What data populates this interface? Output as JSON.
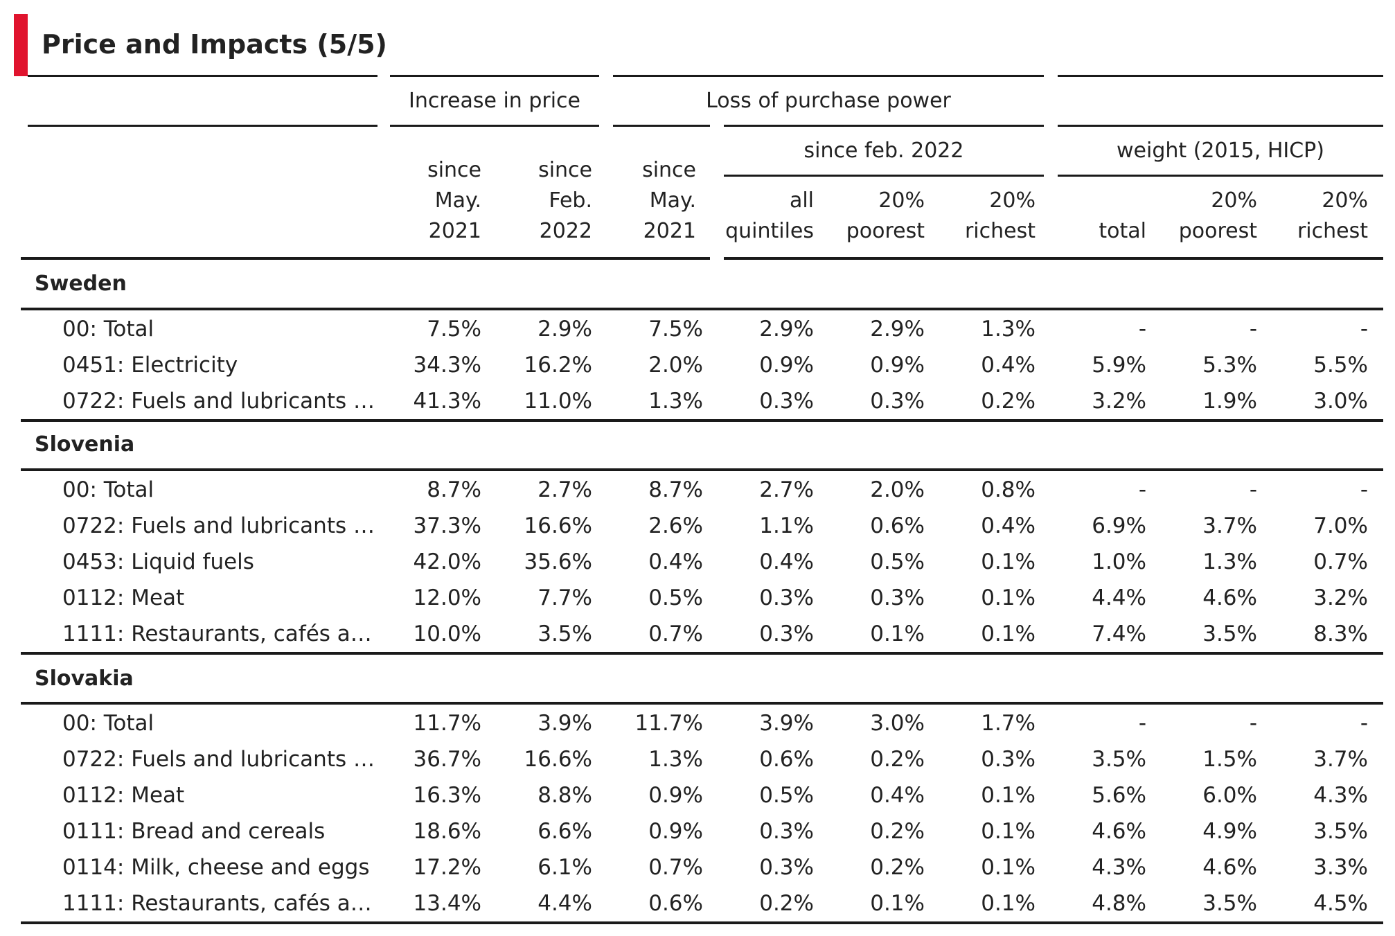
{
  "page": {
    "title": "Price and Impacts (5/5)"
  },
  "headers": {
    "increase_in_price": "Increase in price",
    "loss_of_purchase_power": "Loss of purchase power",
    "since_feb_2022": "since feb. 2022",
    "weight": "weight (2015, HICP)",
    "col1": [
      "since",
      "May.",
      "2021"
    ],
    "col2": [
      "since",
      "Feb.",
      "2022"
    ],
    "col3": [
      "since",
      "May.",
      "2021"
    ],
    "col4": [
      "all",
      "quintiles"
    ],
    "col5": [
      "20%",
      "poorest"
    ],
    "col6": [
      "20%",
      "richest"
    ],
    "col7": [
      "total"
    ],
    "col8": [
      "20%",
      "poorest"
    ],
    "col9": [
      "20%",
      "richest"
    ]
  },
  "sections": [
    {
      "name": "Sweden",
      "rows": [
        {
          "label": "00: Total",
          "values": [
            "7.5%",
            "2.9%",
            "7.5%",
            "2.9%",
            "2.9%",
            "1.3%",
            "-",
            "-",
            "-"
          ]
        },
        {
          "label": "0451: Electricity",
          "values": [
            "34.3%",
            "16.2%",
            "2.0%",
            "0.9%",
            "0.9%",
            "0.4%",
            "5.9%",
            "5.3%",
            "5.5%"
          ]
        },
        {
          "label": "0722: Fuels and lubricants fo...",
          "values": [
            "41.3%",
            "11.0%",
            "1.3%",
            "0.3%",
            "0.3%",
            "0.2%",
            "3.2%",
            "1.9%",
            "3.0%"
          ]
        }
      ]
    },
    {
      "name": "Slovenia",
      "rows": [
        {
          "label": "00: Total",
          "values": [
            "8.7%",
            "2.7%",
            "8.7%",
            "2.7%",
            "2.0%",
            "0.8%",
            "-",
            "-",
            "-"
          ]
        },
        {
          "label": "0722: Fuels and lubricants fo...",
          "values": [
            "37.3%",
            "16.6%",
            "2.6%",
            "1.1%",
            "0.6%",
            "0.4%",
            "6.9%",
            "3.7%",
            "7.0%"
          ]
        },
        {
          "label": "0453: Liquid fuels",
          "values": [
            "42.0%",
            "35.6%",
            "0.4%",
            "0.4%",
            "0.5%",
            "0.1%",
            "1.0%",
            "1.3%",
            "0.7%"
          ]
        },
        {
          "label": "0112: Meat",
          "values": [
            "12.0%",
            "7.7%",
            "0.5%",
            "0.3%",
            "0.3%",
            "0.1%",
            "4.4%",
            "4.6%",
            "3.2%"
          ]
        },
        {
          "label": "1111: Restaurants, cafés and ...",
          "values": [
            "10.0%",
            "3.5%",
            "0.7%",
            "0.3%",
            "0.1%",
            "0.1%",
            "7.4%",
            "3.5%",
            "8.3%"
          ]
        }
      ]
    },
    {
      "name": "Slovakia",
      "rows": [
        {
          "label": "00: Total",
          "values": [
            "11.7%",
            "3.9%",
            "11.7%",
            "3.9%",
            "3.0%",
            "1.7%",
            "-",
            "-",
            "-"
          ]
        },
        {
          "label": "0722: Fuels and lubricants fo...",
          "values": [
            "36.7%",
            "16.6%",
            "1.3%",
            "0.6%",
            "0.2%",
            "0.3%",
            "3.5%",
            "1.5%",
            "3.7%"
          ]
        },
        {
          "label": "0112: Meat",
          "values": [
            "16.3%",
            "8.8%",
            "0.9%",
            "0.5%",
            "0.4%",
            "0.1%",
            "5.6%",
            "6.0%",
            "4.3%"
          ]
        },
        {
          "label": "0111: Bread and cereals",
          "values": [
            "18.6%",
            "6.6%",
            "0.9%",
            "0.3%",
            "0.2%",
            "0.1%",
            "4.6%",
            "4.9%",
            "3.5%"
          ]
        },
        {
          "label": "0114: Milk, cheese and eggs",
          "values": [
            "17.2%",
            "6.1%",
            "0.7%",
            "0.3%",
            "0.2%",
            "0.1%",
            "4.3%",
            "4.6%",
            "3.3%"
          ]
        },
        {
          "label": "1111: Restaurants, cafés and ...",
          "values": [
            "13.4%",
            "4.4%",
            "0.6%",
            "0.2%",
            "0.1%",
            "0.1%",
            "4.8%",
            "3.5%",
            "4.5%"
          ]
        }
      ]
    }
  ]
}
